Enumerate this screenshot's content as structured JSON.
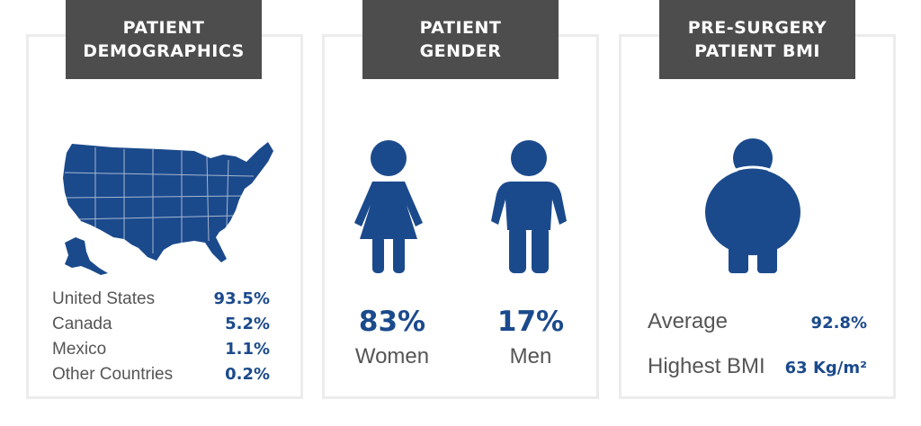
{
  "colors": {
    "header_bg": "#4d4d4d",
    "accent": "#1b4a8c",
    "panel_border": "#ececec"
  },
  "demographics": {
    "title_line1": "PATIENT",
    "title_line2": "DEMOGRAPHICS",
    "rows": [
      {
        "label": "United States",
        "value": "93.5%"
      },
      {
        "label": "Canada",
        "value": "5.2%"
      },
      {
        "label": "Mexico",
        "value": "1.1%"
      },
      {
        "label": "Other Countries",
        "value": "0.2%"
      }
    ]
  },
  "gender": {
    "title_line1": "PATIENT",
    "title_line2": "GENDER",
    "women": {
      "value": "83%",
      "label": "Women"
    },
    "men": {
      "value": "17%",
      "label": "Men"
    }
  },
  "bmi": {
    "title_line1": "PRE-SURGERY",
    "title_line2": "PATIENT BMI",
    "rows": [
      {
        "label": "Average",
        "value": "92.8%"
      },
      {
        "label": "Highest BMI",
        "value": "63 Kg/m²"
      }
    ]
  }
}
